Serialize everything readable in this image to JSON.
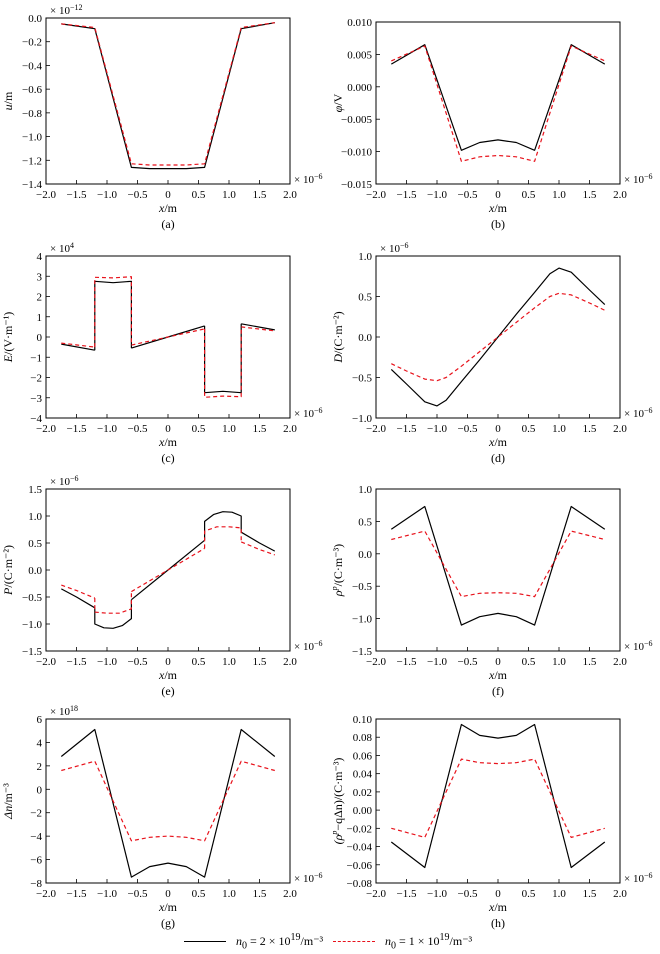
{
  "chart_data": [
    {
      "type": "line",
      "panel": "(a)",
      "ylabel_main": "u",
      "ylabel_unit": "/m",
      "xlabel_main": "x",
      "xlabel_unit": "/m",
      "exponent_y": "× 10",
      "exponent_y_power": "−12",
      "exponent_x": "× 10",
      "exponent_x_power": "−6",
      "xlim": [
        -2.0,
        2.0
      ],
      "ylim": [
        -1.4,
        0.0
      ],
      "xticks": [
        "−2.0",
        "−1.5",
        "−1.0",
        "−0.5",
        "0",
        "0.5",
        "1.0",
        "1.5",
        "2.0"
      ],
      "yticks": [
        "0.0",
        "−0.2",
        "−0.4",
        "−0.6",
        "−0.8",
        "−1.0",
        "−1.2",
        "−1.4"
      ],
      "series": [
        {
          "style": "solid",
          "x": [
            -1.75,
            -1.2,
            -0.6,
            -0.3,
            0,
            0.3,
            0.6,
            1.2,
            1.75
          ],
          "y": [
            -0.05,
            -0.09,
            -1.26,
            -1.27,
            -1.27,
            -1.27,
            -1.26,
            -0.09,
            -0.04
          ]
        },
        {
          "style": "dashed",
          "x": [
            -1.75,
            -1.2,
            -0.6,
            -0.3,
            0,
            0.3,
            0.6,
            1.2,
            1.75
          ],
          "y": [
            -0.05,
            -0.08,
            -1.23,
            -1.24,
            -1.24,
            -1.24,
            -1.23,
            -0.08,
            -0.04
          ]
        }
      ]
    },
    {
      "type": "line",
      "panel": "(b)",
      "ylabel_main": "φ",
      "ylabel_unit": "/V",
      "xlabel_main": "x",
      "xlabel_unit": "/m",
      "exponent_y": "",
      "exponent_y_power": "",
      "exponent_x": "× 10",
      "exponent_x_power": "−6",
      "xlim": [
        -2.0,
        2.0
      ],
      "ylim": [
        -0.015,
        0.01
      ],
      "xticks": [
        "−2.0",
        "−1.5",
        "−1.0",
        "−0.5",
        "0",
        "0.5",
        "1.0",
        "1.5",
        "2.0"
      ],
      "yticks": [
        "0.010",
        "0.005",
        "0.000",
        "−0.005",
        "−0.010",
        "−0.015"
      ],
      "series": [
        {
          "style": "solid",
          "x": [
            -1.75,
            -1.2,
            -0.6,
            -0.3,
            0,
            0.3,
            0.6,
            1.2,
            1.75
          ],
          "y": [
            0.0035,
            0.0065,
            -0.0098,
            -0.0086,
            -0.0082,
            -0.0086,
            -0.0098,
            0.0065,
            0.0035
          ]
        },
        {
          "style": "dashed",
          "x": [
            -1.75,
            -1.2,
            -0.6,
            -0.3,
            0,
            0.3,
            0.6,
            1.2,
            1.75
          ],
          "y": [
            0.004,
            0.0063,
            -0.0115,
            -0.0108,
            -0.0106,
            -0.0108,
            -0.0115,
            0.0063,
            0.004
          ]
        }
      ]
    },
    {
      "type": "line",
      "panel": "(c)",
      "ylabel_main": "E",
      "ylabel_unit": "/(V·m⁻¹)",
      "xlabel_main": "x",
      "xlabel_unit": "/m",
      "exponent_y": "× 10",
      "exponent_y_power": "4",
      "exponent_x": "× 10",
      "exponent_x_power": "−6",
      "xlim": [
        -2.0,
        2.0
      ],
      "ylim": [
        -4,
        4
      ],
      "xticks": [
        "−2.0",
        "−1.5",
        "−1.0",
        "−0.5",
        "0",
        "0.5",
        "1.0",
        "1.5",
        "2.0"
      ],
      "yticks": [
        "4",
        "3",
        "2",
        "1",
        "0",
        "−1",
        "−2",
        "−3",
        "−4"
      ],
      "series": [
        {
          "style": "solid",
          "segments": [
            {
              "x": [
                -1.75,
                -1.2
              ],
              "y": [
                -0.35,
                -0.65
              ]
            },
            {
              "x": [
                -1.2,
                -1.2,
                -0.9,
                -0.6,
                -0.6
              ],
              "y": [
                -0.65,
                2.75,
                2.68,
                2.75,
                -0.55
              ]
            },
            {
              "x": [
                -0.6,
                0,
                0.6
              ],
              "y": [
                -0.55,
                0,
                0.55
              ]
            },
            {
              "x": [
                0.6,
                0.6,
                0.9,
                1.2,
                1.2
              ],
              "y": [
                0.55,
                -2.75,
                -2.68,
                -2.75,
                0.65
              ]
            },
            {
              "x": [
                1.2,
                1.75
              ],
              "y": [
                0.65,
                0.35
              ]
            }
          ]
        },
        {
          "style": "dashed",
          "segments": [
            {
              "x": [
                -1.75,
                -1.2
              ],
              "y": [
                -0.3,
                -0.5
              ]
            },
            {
              "x": [
                -1.2,
                -1.2,
                -0.9,
                -0.6,
                -0.6
              ],
              "y": [
                -0.5,
                2.95,
                2.92,
                2.98,
                -0.4
              ]
            },
            {
              "x": [
                -0.6,
                0,
                0.6
              ],
              "y": [
                -0.4,
                0,
                0.4
              ]
            },
            {
              "x": [
                0.6,
                0.6,
                0.9,
                1.2,
                1.2
              ],
              "y": [
                0.4,
                -2.98,
                -2.92,
                -2.95,
                0.5
              ]
            },
            {
              "x": [
                1.2,
                1.75
              ],
              "y": [
                0.5,
                0.3
              ]
            }
          ]
        }
      ]
    },
    {
      "type": "line",
      "panel": "(d)",
      "ylabel_main": "D",
      "ylabel_unit": "/(C·m⁻²)",
      "xlabel_main": "x",
      "xlabel_unit": "/m",
      "exponent_y": "× 10",
      "exponent_y_power": "−6",
      "exponent_x": "× 10",
      "exponent_x_power": "−6",
      "xlim": [
        -2.0,
        2.0
      ],
      "ylim": [
        -1.0,
        1.0
      ],
      "xticks": [
        "−2.0",
        "−1.5",
        "−1.0",
        "−0.5",
        "0",
        "0.5",
        "1.0",
        "1.5",
        "2.0"
      ],
      "yticks": [
        "1.0",
        "0.5",
        "0.0",
        "−0.5",
        "−1.0"
      ],
      "series": [
        {
          "style": "solid",
          "x": [
            -1.75,
            -1.5,
            -1.2,
            -1.0,
            -0.85,
            -0.6,
            -0.3,
            0,
            0.3,
            0.6,
            0.85,
            1.0,
            1.2,
            1.5,
            1.75
          ],
          "y": [
            -0.4,
            -0.58,
            -0.8,
            -0.85,
            -0.78,
            -0.55,
            -0.28,
            0,
            0.28,
            0.55,
            0.78,
            0.85,
            0.8,
            0.58,
            0.4
          ]
        },
        {
          "style": "dashed",
          "x": [
            -1.75,
            -1.5,
            -1.2,
            -1.0,
            -0.85,
            -0.6,
            -0.3,
            0,
            0.3,
            0.6,
            0.85,
            1.0,
            1.2,
            1.5,
            1.75
          ],
          "y": [
            -0.33,
            -0.42,
            -0.52,
            -0.54,
            -0.5,
            -0.36,
            -0.18,
            0,
            0.18,
            0.36,
            0.5,
            0.54,
            0.52,
            0.42,
            0.33
          ]
        }
      ]
    },
    {
      "type": "line",
      "panel": "(e)",
      "ylabel_main": "P",
      "ylabel_unit": "/(C·m⁻²)",
      "xlabel_main": "x",
      "xlabel_unit": "/m",
      "exponent_y": "× 10",
      "exponent_y_power": "−6",
      "exponent_x": "× 10",
      "exponent_x_power": "−6",
      "xlim": [
        -2.0,
        2.0
      ],
      "ylim": [
        -1.5,
        1.5
      ],
      "xticks": [
        "−2.0",
        "−1.5",
        "−1.0",
        "−0.5",
        "0",
        "0.5",
        "1.0",
        "1.5",
        "2.0"
      ],
      "yticks": [
        "1.5",
        "1.0",
        "0.5",
        "0.0",
        "−0.5",
        "−1.0",
        "−1.5"
      ],
      "series": [
        {
          "style": "solid",
          "segments": [
            {
              "x": [
                -1.75,
                -1.5,
                -1.2
              ],
              "y": [
                -0.35,
                -0.5,
                -0.7
              ]
            },
            {
              "x": [
                -1.2,
                -1.2,
                -1.05,
                -0.9,
                -0.75,
                -0.6,
                -0.6
              ],
              "y": [
                -0.7,
                -1.0,
                -1.07,
                -1.08,
                -1.03,
                -0.9,
                -0.55
              ]
            },
            {
              "x": [
                -0.6,
                0,
                0.6
              ],
              "y": [
                -0.55,
                0,
                0.55
              ]
            },
            {
              "x": [
                0.6,
                0.6,
                0.75,
                0.9,
                1.05,
                1.2,
                1.2
              ],
              "y": [
                0.55,
                0.9,
                1.03,
                1.08,
                1.07,
                1.0,
                0.7
              ]
            },
            {
              "x": [
                1.2,
                1.5,
                1.75
              ],
              "y": [
                0.7,
                0.5,
                0.35
              ]
            }
          ]
        },
        {
          "style": "dashed",
          "segments": [
            {
              "x": [
                -1.75,
                -1.5,
                -1.2
              ],
              "y": [
                -0.28,
                -0.38,
                -0.52
              ]
            },
            {
              "x": [
                -1.2,
                -1.2,
                -1.0,
                -0.8,
                -0.6,
                -0.6
              ],
              "y": [
                -0.52,
                -0.78,
                -0.8,
                -0.8,
                -0.72,
                -0.4
              ]
            },
            {
              "x": [
                -0.6,
                0,
                0.6
              ],
              "y": [
                -0.4,
                0,
                0.4
              ]
            },
            {
              "x": [
                0.6,
                0.6,
                0.8,
                1.0,
                1.2,
                1.2
              ],
              "y": [
                0.4,
                0.72,
                0.8,
                0.8,
                0.78,
                0.52
              ]
            },
            {
              "x": [
                1.2,
                1.5,
                1.75
              ],
              "y": [
                0.52,
                0.38,
                0.28
              ]
            }
          ]
        }
      ]
    },
    {
      "type": "line",
      "panel": "(f)",
      "ylabel_main": "ρ",
      "ylabel_sup": "p",
      "ylabel_unit": "/(C·m⁻³)",
      "xlabel_main": "x",
      "xlabel_unit": "/m",
      "exponent_y": "",
      "exponent_y_power": "",
      "exponent_x": "× 10",
      "exponent_x_power": "−6",
      "xlim": [
        -2.0,
        2.0
      ],
      "ylim": [
        -1.5,
        1.0
      ],
      "xticks": [
        "−2.0",
        "−1.5",
        "−1.0",
        "−0.5",
        "0",
        "0.5",
        "1.0",
        "1.5",
        "2.0"
      ],
      "yticks": [
        "1.0",
        "0.5",
        "0.0",
        "−0.5",
        "−1.0",
        "−1.5"
      ],
      "series": [
        {
          "style": "solid",
          "x": [
            -1.75,
            -1.2,
            -0.6,
            -0.3,
            0,
            0.3,
            0.6,
            1.2,
            1.75
          ],
          "y": [
            0.38,
            0.73,
            -1.1,
            -0.97,
            -0.92,
            -0.97,
            -1.1,
            0.73,
            0.38
          ]
        },
        {
          "style": "dashed",
          "x": [
            -1.75,
            -1.2,
            -0.6,
            -0.3,
            0,
            0.3,
            0.6,
            1.2,
            1.75
          ],
          "y": [
            0.22,
            0.35,
            -0.66,
            -0.61,
            -0.6,
            -0.61,
            -0.66,
            0.35,
            0.22
          ]
        }
      ]
    },
    {
      "type": "line",
      "panel": "(g)",
      "ylabel_main": "Δn",
      "ylabel_unit": "/m⁻³",
      "xlabel_main": "x",
      "xlabel_unit": "/m",
      "exponent_y": "× 10",
      "exponent_y_power": "18",
      "exponent_x": "× 10",
      "exponent_x_power": "−6",
      "xlim": [
        -2.0,
        2.0
      ],
      "ylim": [
        -8,
        6
      ],
      "xticks": [
        "−2.0",
        "−1.5",
        "−1.0",
        "−0.5",
        "0",
        "0.5",
        "1.0",
        "1.5",
        "2.0"
      ],
      "yticks": [
        "6",
        "4",
        "2",
        "0",
        "−2",
        "−4",
        "−6",
        "−8"
      ],
      "series": [
        {
          "style": "solid",
          "x": [
            -1.75,
            -1.2,
            -0.6,
            -0.3,
            0,
            0.3,
            0.6,
            1.2,
            1.75
          ],
          "y": [
            2.8,
            5.1,
            -7.5,
            -6.6,
            -6.3,
            -6.6,
            -7.5,
            5.1,
            2.8
          ]
        },
        {
          "style": "dashed",
          "x": [
            -1.75,
            -1.2,
            -0.6,
            -0.3,
            0,
            0.3,
            0.6,
            1.2,
            1.75
          ],
          "y": [
            1.6,
            2.4,
            -4.4,
            -4.1,
            -4.0,
            -4.1,
            -4.4,
            2.4,
            1.6
          ]
        }
      ]
    },
    {
      "type": "line",
      "panel": "(h)",
      "ylabel_main": "(ρ",
      "ylabel_sup": "p",
      "ylabel_unit": "−qΔn)/(C·m⁻³)",
      "xlabel_main": "x",
      "xlabel_unit": "/m",
      "exponent_y": "",
      "exponent_y_power": "",
      "exponent_x": "× 10",
      "exponent_x_power": "−6",
      "xlim": [
        -2.0,
        2.0
      ],
      "ylim": [
        -0.08,
        0.1
      ],
      "xticks": [
        "−2.0",
        "−1.5",
        "−1.0",
        "−0.5",
        "0",
        "0.5",
        "1.0",
        "1.5",
        "2.0"
      ],
      "yticks": [
        "0.10",
        "0.08",
        "0.06",
        "0.04",
        "0.02",
        "0.00",
        "−0.02",
        "−0.04",
        "−0.06",
        "−0.08"
      ],
      "series": [
        {
          "style": "solid",
          "x": [
            -1.75,
            -1.2,
            -0.6,
            -0.3,
            0,
            0.3,
            0.6,
            1.2,
            1.75
          ],
          "y": [
            -0.035,
            -0.063,
            0.094,
            0.082,
            0.079,
            0.082,
            0.094,
            -0.063,
            -0.035
          ]
        },
        {
          "style": "dashed",
          "x": [
            -1.75,
            -1.2,
            -0.6,
            -0.3,
            0,
            0.3,
            0.6,
            1.2,
            1.75
          ],
          "y": [
            -0.02,
            -0.03,
            0.056,
            0.052,
            0.051,
            0.052,
            0.056,
            -0.03,
            -0.02
          ]
        }
      ]
    }
  ],
  "legend": {
    "solid_prefix": "n",
    "solid_sub": "0",
    "solid_mid": " = 2 × 10",
    "solid_sup": "19",
    "solid_unit": "/m⁻³",
    "dashed_prefix": "n",
    "dashed_sub": "0",
    "dashed_mid": " = 1 × 10",
    "dashed_sup": "19",
    "dashed_unit": "/m⁻³"
  },
  "colors": {
    "solid": "#000000",
    "dashed": "#e8121b"
  }
}
